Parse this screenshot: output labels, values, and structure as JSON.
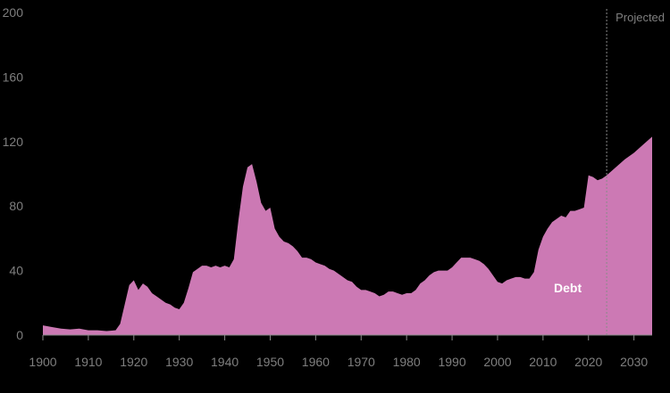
{
  "colors": {
    "background": "#000000",
    "area_fill": "#cc79b4",
    "axis": "#8a8a8a",
    "tick_text": "#7f7f7f",
    "label_text": "#ffffff",
    "projection_line": "#8a8a8a"
  },
  "chart_data": {
    "type": "area",
    "title": "",
    "xlabel": "",
    "ylabel": "",
    "xlim": [
      1900,
      2034
    ],
    "ylim": [
      0,
      200
    ],
    "grid": false,
    "legend": "none",
    "x_ticks": [
      1900,
      1910,
      1920,
      1930,
      1940,
      1950,
      1960,
      1970,
      1980,
      1990,
      2000,
      2010,
      2020,
      2030
    ],
    "x_tick_labels": [
      "1900",
      "1910",
      "1920",
      "1930",
      "1940",
      "1950",
      "1960",
      "1970",
      "1980",
      "1990",
      "2000",
      "2010",
      "2020",
      "2030"
    ],
    "y_ticks": [
      0,
      40,
      80,
      120,
      160,
      200
    ],
    "y_tick_labels": [
      "0",
      "40",
      "80",
      "120",
      "160",
      "200"
    ],
    "projection_start": 2024,
    "projection_label": "Projected",
    "series": [
      {
        "name": "Debt",
        "x": [
          1900,
          1902,
          1904,
          1906,
          1908,
          1910,
          1912,
          1914,
          1916,
          1917,
          1918,
          1919,
          1920,
          1921,
          1922,
          1923,
          1924,
          1925,
          1926,
          1927,
          1928,
          1929,
          1930,
          1931,
          1932,
          1933,
          1934,
          1935,
          1936,
          1937,
          1938,
          1939,
          1940,
          1941,
          1942,
          1943,
          1944,
          1945,
          1946,
          1947,
          1948,
          1949,
          1950,
          1951,
          1952,
          1953,
          1954,
          1955,
          1956,
          1957,
          1958,
          1959,
          1960,
          1961,
          1962,
          1963,
          1964,
          1965,
          1966,
          1967,
          1968,
          1969,
          1970,
          1971,
          1972,
          1973,
          1974,
          1975,
          1976,
          1977,
          1978,
          1979,
          1980,
          1981,
          1982,
          1983,
          1984,
          1985,
          1986,
          1987,
          1988,
          1989,
          1990,
          1991,
          1992,
          1993,
          1994,
          1995,
          1996,
          1997,
          1998,
          1999,
          2000,
          2001,
          2002,
          2003,
          2004,
          2005,
          2006,
          2007,
          2008,
          2009,
          2010,
          2011,
          2012,
          2013,
          2014,
          2015,
          2016,
          2017,
          2018,
          2019,
          2020,
          2021,
          2022,
          2023,
          2024,
          2026,
          2028,
          2030,
          2032,
          2034
        ],
        "values": [
          6,
          5,
          4,
          3.5,
          4,
          3,
          3,
          2.5,
          3,
          7,
          19,
          31,
          34,
          28,
          32,
          30,
          26,
          24,
          22,
          20,
          19,
          17,
          16,
          20,
          29,
          39,
          41,
          43,
          43,
          42,
          43,
          42,
          43,
          42,
          47,
          71,
          92,
          104,
          106,
          95,
          82,
          77,
          79,
          66,
          61,
          58,
          57,
          55,
          52,
          48,
          48,
          47,
          45,
          44,
          43,
          41,
          40,
          38,
          36,
          34,
          33,
          30,
          28,
          28,
          27,
          26,
          24,
          25,
          27,
          27,
          26,
          25,
          26,
          26,
          28,
          32,
          34,
          37,
          39,
          40,
          40,
          40,
          42,
          45,
          48,
          48,
          48,
          47,
          46,
          44,
          41,
          37,
          33,
          32,
          34,
          35,
          36,
          36,
          35,
          35,
          39,
          53,
          61,
          66,
          70,
          72,
          74,
          73,
          77,
          77,
          78,
          79,
          99,
          98,
          96,
          97,
          99,
          104,
          109,
          113,
          118,
          123
        ]
      }
    ]
  }
}
